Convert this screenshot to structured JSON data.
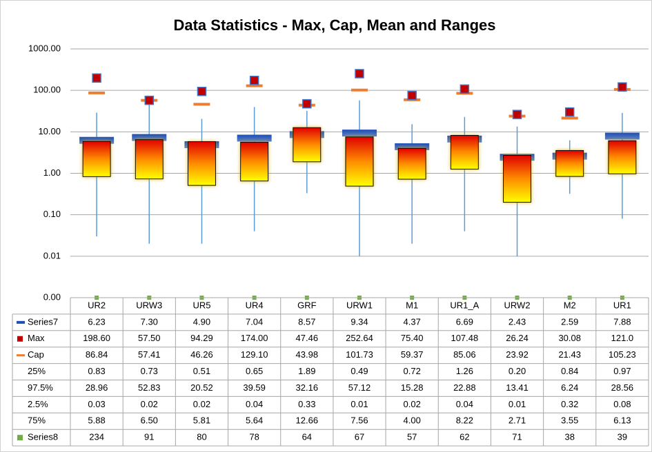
{
  "chart_data": {
    "type": "box",
    "title": "Data Statistics - Max, Cap, Mean and Ranges",
    "categories": [
      "UR2",
      "URW3",
      "UR5",
      "UR4",
      "GRF",
      "URW1",
      "M1",
      "UR1_A",
      "URW2",
      "M2",
      "UR1"
    ],
    "log_scale": true,
    "grid": true,
    "ylim": [
      0.001,
      1000
    ],
    "yticks": [
      {
        "value": 0.001,
        "label": "0.00"
      },
      {
        "value": 0.01,
        "label": "0.01"
      },
      {
        "value": 0.1,
        "label": "0.10"
      },
      {
        "value": 1,
        "label": "1.00"
      },
      {
        "value": 10,
        "label": "10.00"
      },
      {
        "value": 100,
        "label": "100.00"
      },
      {
        "value": 1000,
        "label": "1000.00"
      }
    ],
    "series": [
      {
        "name": "Series7",
        "color": "#1f4eb4",
        "values": [
          6.23,
          7.3,
          4.9,
          7.04,
          8.57,
          9.34,
          4.37,
          6.69,
          2.43,
          2.59,
          7.88
        ],
        "value_labels": [
          "6.23",
          "7.30",
          "4.90",
          "7.04",
          "8.57",
          "9.34",
          "4.37",
          "6.69",
          "2.43",
          "2.59",
          "7.88"
        ]
      },
      {
        "name": "Max",
        "color": "#c00000",
        "values": [
          198.6,
          57.5,
          94.29,
          174.0,
          47.46,
          252.64,
          75.4,
          107.48,
          26.24,
          30.08,
          121.0
        ],
        "value_labels": [
          "198.60",
          "57.50",
          "94.29",
          "174.00",
          "47.46",
          "252.64",
          "75.40",
          "107.48",
          "26.24",
          "30.08",
          "121.0"
        ]
      },
      {
        "name": "Cap",
        "color": "#ed7d31",
        "values": [
          86.84,
          57.41,
          46.26,
          129.1,
          43.98,
          101.73,
          59.37,
          85.06,
          23.92,
          21.43,
          105.23
        ],
        "value_labels": [
          "86.84",
          "57.41",
          "46.26",
          "129.10",
          "43.98",
          "101.73",
          "59.37",
          "85.06",
          "23.92",
          "21.43",
          "105.23"
        ]
      },
      {
        "name": "25%",
        "values": [
          0.83,
          0.73,
          0.51,
          0.65,
          1.89,
          0.49,
          0.72,
          1.26,
          0.2,
          0.84,
          0.97
        ],
        "value_labels": [
          "0.83",
          "0.73",
          "0.51",
          "0.65",
          "1.89",
          "0.49",
          "0.72",
          "1.26",
          "0.20",
          "0.84",
          "0.97"
        ]
      },
      {
        "name": "97.5%",
        "color": "#5b9bd5",
        "values": [
          28.96,
          52.83,
          20.52,
          39.59,
          32.16,
          57.12,
          15.28,
          22.88,
          13.41,
          6.24,
          28.56
        ],
        "value_labels": [
          "28.96",
          "52.83",
          "20.52",
          "39.59",
          "32.16",
          "57.12",
          "15.28",
          "22.88",
          "13.41",
          "6.24",
          "28.56"
        ]
      },
      {
        "name": "2.5%",
        "values": [
          0.03,
          0.02,
          0.02,
          0.04,
          0.33,
          0.01,
          0.02,
          0.04,
          0.01,
          0.32,
          0.08
        ],
        "value_labels": [
          "0.03",
          "0.02",
          "0.02",
          "0.04",
          "0.33",
          "0.01",
          "0.02",
          "0.04",
          "0.01",
          "0.32",
          "0.08"
        ]
      },
      {
        "name": "75%",
        "values": [
          5.88,
          6.5,
          5.81,
          5.64,
          12.66,
          7.56,
          4.0,
          8.22,
          2.71,
          3.55,
          6.13
        ],
        "value_labels": [
          "5.88",
          "6.50",
          "5.81",
          "5.64",
          "12.66",
          "7.56",
          "4.00",
          "8.22",
          "2.71",
          "3.55",
          "6.13"
        ]
      },
      {
        "name": "Series8",
        "color": "#70ad47",
        "values": [
          234,
          91,
          80,
          78,
          64,
          67,
          57,
          62,
          71,
          38,
          39
        ]
      }
    ]
  }
}
